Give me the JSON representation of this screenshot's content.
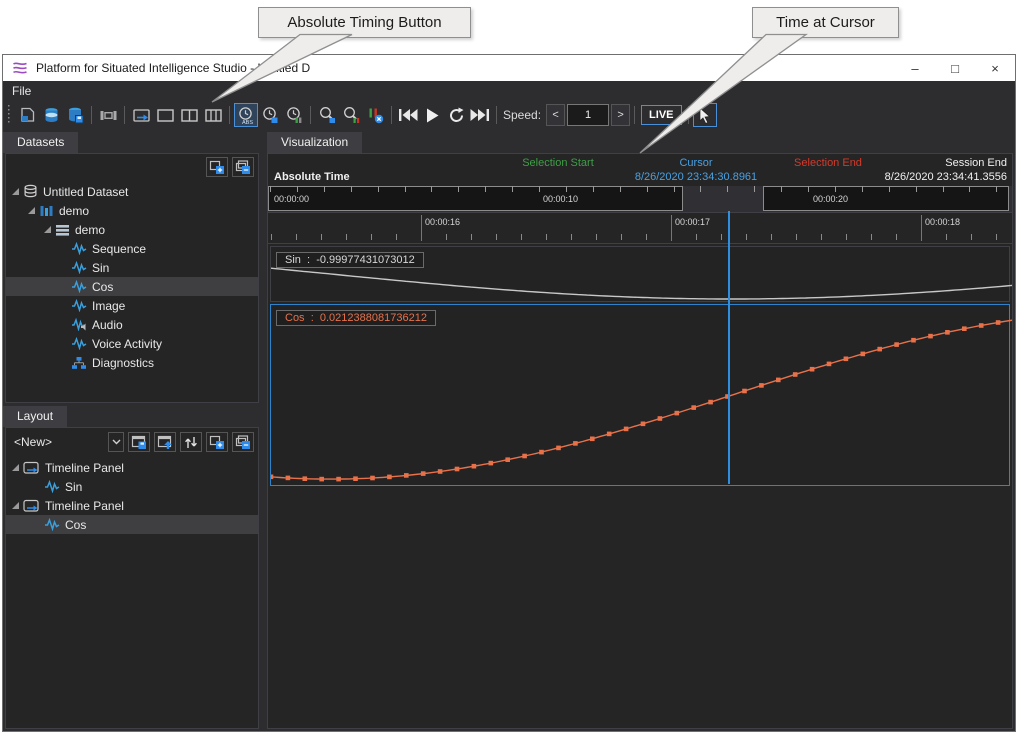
{
  "callouts": {
    "absolute_timing": "Absolute Timing Button",
    "time_at_cursor": "Time at Cursor"
  },
  "window": {
    "title": "Platform for Situated Intelligence Studio - Untitled D",
    "minimize": "–",
    "maximize": "□",
    "close": "×"
  },
  "menu": {
    "file": "File"
  },
  "toolbar": {
    "abs_label": "ABS",
    "speed_label": "Speed:",
    "speed_dec": "<",
    "speed_value": "1",
    "speed_inc": ">",
    "live_label": "LIVE"
  },
  "datasets_panel": {
    "tab": "Datasets",
    "tree": [
      {
        "label": "Untitled Dataset",
        "depth": 0,
        "icon": "dataset",
        "expanded": true
      },
      {
        "label": "demo",
        "depth": 1,
        "icon": "session",
        "expanded": true
      },
      {
        "label": "demo",
        "depth": 2,
        "icon": "partition",
        "expanded": true
      },
      {
        "label": "Sequence",
        "depth": 3,
        "icon": "stream"
      },
      {
        "label": "Sin",
        "depth": 3,
        "icon": "stream"
      },
      {
        "label": "Cos",
        "depth": 3,
        "icon": "stream",
        "selected": true
      },
      {
        "label": "Image",
        "depth": 3,
        "icon": "stream"
      },
      {
        "label": "Audio",
        "depth": 3,
        "icon": "audio"
      },
      {
        "label": "Voice Activity",
        "depth": 3,
        "icon": "stream"
      },
      {
        "label": "Diagnostics",
        "depth": 3,
        "icon": "diagnostics"
      }
    ]
  },
  "layout_panel": {
    "tab": "Layout",
    "dropdown_value": "<New>",
    "tree": [
      {
        "label": "Timeline Panel",
        "depth": 0,
        "icon": "timeline-panel",
        "expanded": true
      },
      {
        "label": "Sin",
        "depth": 1,
        "icon": "stream"
      },
      {
        "label": "Timeline Panel",
        "depth": 0,
        "icon": "timeline-panel",
        "expanded": true
      },
      {
        "label": "Cos",
        "depth": 1,
        "icon": "stream",
        "selected": true
      }
    ]
  },
  "viz": {
    "tab": "Visualization",
    "header": {
      "selection_start": "Selection Start",
      "cursor": "Cursor",
      "cursor_time": "8/26/2020 23:34:30.8961",
      "selection_end": "Selection End",
      "session_end": "Session End",
      "session_end_time": "8/26/2020 23:34:41.3556",
      "absolute_time": "Absolute Time"
    },
    "ruler_top": {
      "labels": [
        "00:00:00",
        "00:00:10",
        "00:00:20"
      ]
    },
    "ruler_zoom": {
      "labels": [
        "00:00:16",
        "00:00:17",
        "00:00:18"
      ]
    }
  },
  "plots": {
    "sin": {
      "name": "Sin",
      "sep": ":",
      "value": "-0.99977431073012"
    },
    "cos": {
      "name": "Cos",
      "sep": ":",
      "value": "0.0212388081736212"
    }
  },
  "chart_data": [
    {
      "type": "line",
      "series": "Sin",
      "color": "#c8c8c8",
      "x_view_window": [
        "00:00:15.4",
        "00:00:18.4"
      ],
      "cursor_time": "8/26/2020 23:34:30.8961",
      "value_at_cursor": -0.99977431073012,
      "func": "sin",
      "phase_left_rad": 2.909,
      "phase_right_rad": 5.818,
      "y_range": [
        -1.08,
        1.08
      ],
      "markers": false,
      "cursor_fraction": 0.6156
    },
    {
      "type": "line",
      "series": "Cos",
      "color": "#e8714a",
      "x_view_window": [
        "00:00:15.4",
        "00:00:18.4"
      ],
      "cursor_time": "8/26/2020 23:34:30.8961",
      "value_at_cursor": 0.0212388081736212,
      "func": "cos",
      "phase_left_rad": 2.909,
      "phase_right_rad": 5.818,
      "y_range": [
        -1.07,
        1.07
      ],
      "markers": true,
      "marker_count": 45,
      "cursor_fraction": 0.6156
    }
  ],
  "colors": {
    "accent_blue": "#3aa0dd",
    "cursor_blue": "#2e8fe0",
    "selection_green": "#3f9e46",
    "selection_red": "#d43a2a",
    "cos_orange": "#e8714a",
    "sin_gray": "#c8c8c8",
    "panel_selected_border": "#2d84cc"
  }
}
